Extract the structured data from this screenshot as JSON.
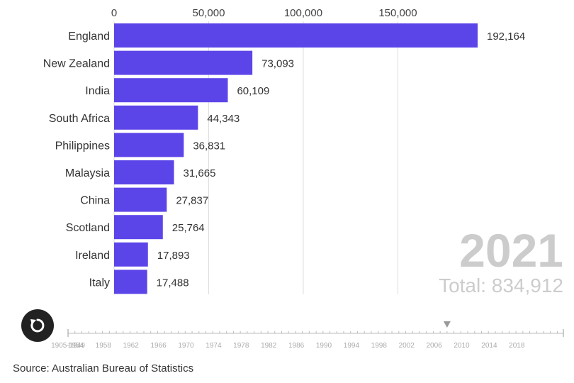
{
  "chart_data": {
    "type": "bar",
    "orientation": "horizontal",
    "categories": [
      "England",
      "New Zealand",
      "India",
      "South Africa",
      "Philippines",
      "Malaysia",
      "China",
      "Scotland",
      "Ireland",
      "Italy"
    ],
    "values": [
      192164,
      73093,
      60109,
      44343,
      36831,
      31665,
      27837,
      25764,
      17893,
      17488
    ],
    "value_labels": [
      "192,164",
      "73,093",
      "60,109",
      "44,343",
      "36,831",
      "31,665",
      "27,837",
      "25,764",
      "17,893",
      "17,488"
    ],
    "x_ticks": [
      0,
      50000,
      100000,
      150000
    ],
    "x_tick_labels": [
      "0",
      "50,000",
      "100,000",
      "150,000"
    ],
    "xlim": [
      0,
      192164
    ],
    "grid": true,
    "colors": {
      "bar": "#5c45e8",
      "grid": "#dddddd"
    }
  },
  "year_label": "2021",
  "total_label": "Total: 834,912",
  "timeline": {
    "labels": [
      "1905-1949",
      "1954",
      "1958",
      "1962",
      "1966",
      "1970",
      "1974",
      "1978",
      "1982",
      "1986",
      "1990",
      "1994",
      "1998",
      "2002",
      "2006",
      "2010",
      "2014",
      "2018"
    ],
    "current_year": 2005
  },
  "replay_button": {
    "icon": "replay-icon"
  },
  "source": "Source: Australian Bureau of Statistics"
}
